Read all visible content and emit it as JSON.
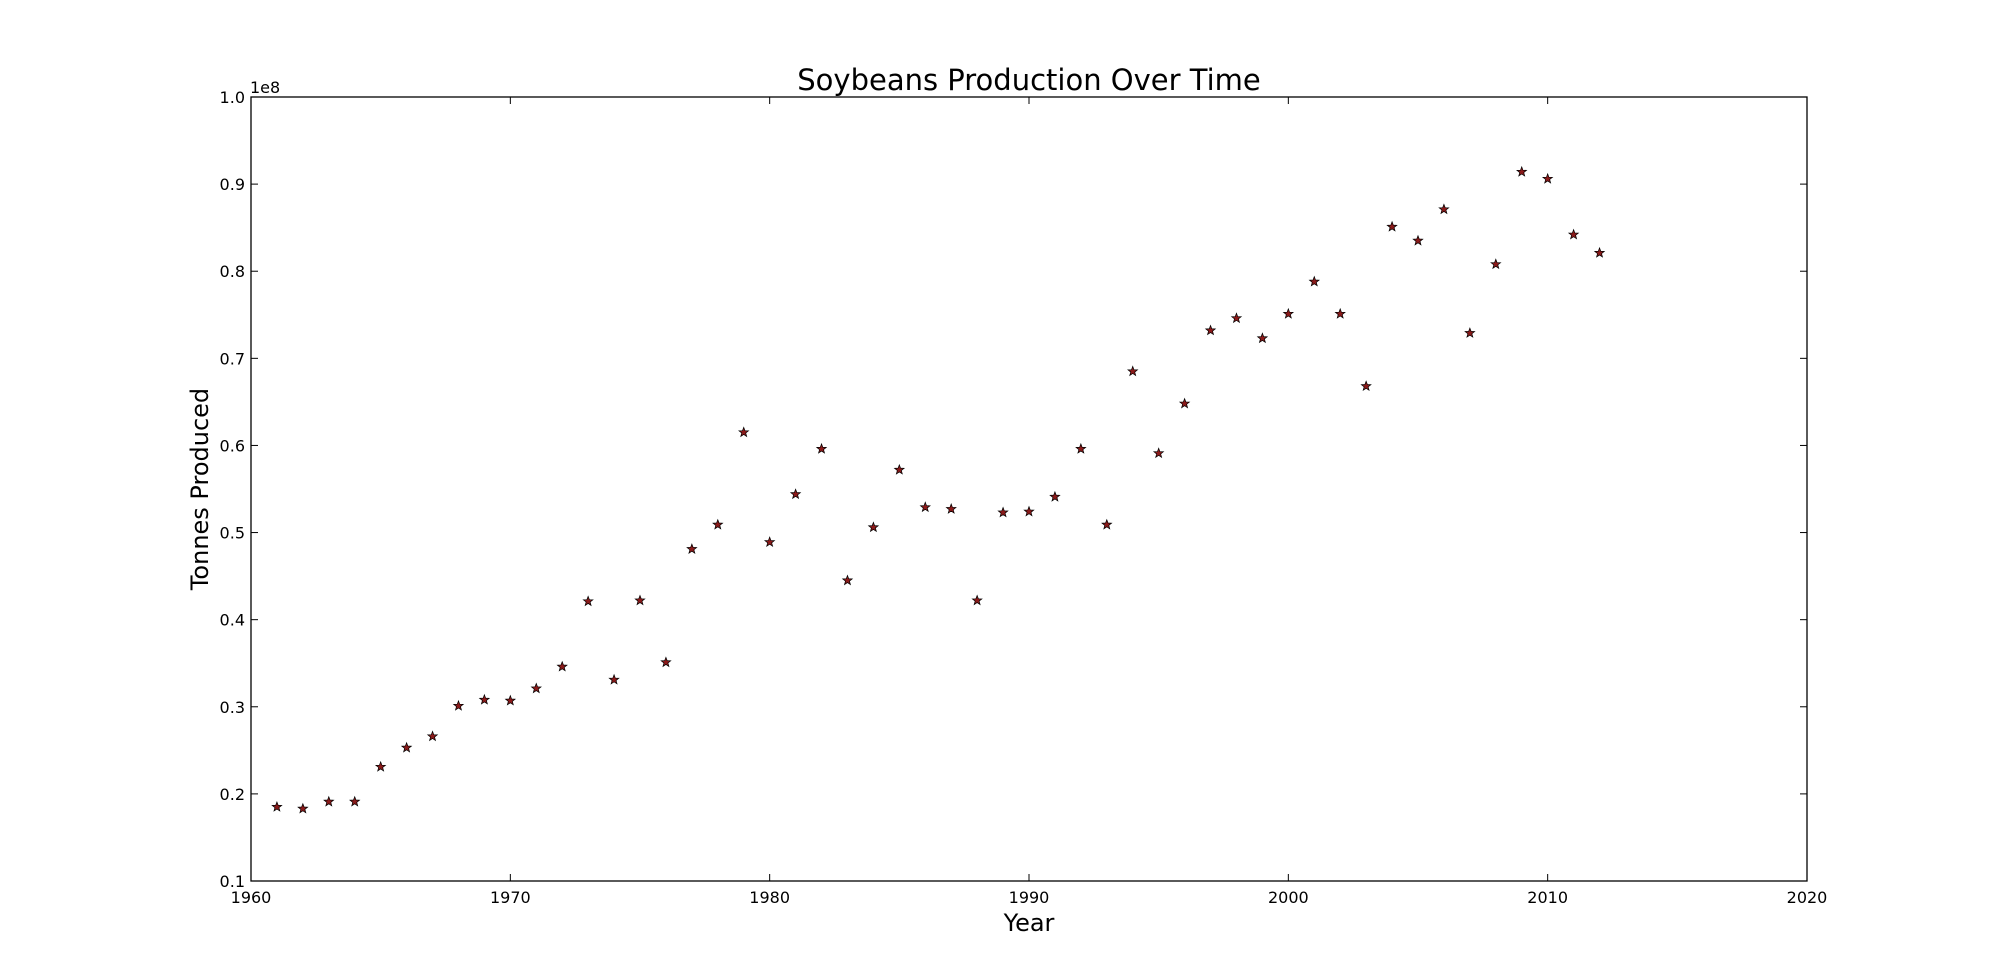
{
  "chart_data": {
    "type": "scatter",
    "title": "Soybeans Production Over Time",
    "xlabel": "Year",
    "ylabel": "Tonnes Produced",
    "y_offset_label": "1e8",
    "xlim": [
      1960,
      2020
    ],
    "ylim": [
      0.1,
      1.0
    ],
    "x_ticks": [
      1960,
      1970,
      1980,
      1990,
      2000,
      2010,
      2020
    ],
    "x_tick_labels": [
      "1960",
      "1970",
      "1980",
      "1990",
      "2000",
      "2010",
      "2020"
    ],
    "y_ticks": [
      0.1,
      0.2,
      0.3,
      0.4,
      0.5,
      0.6,
      0.7,
      0.8,
      0.9,
      1.0
    ],
    "y_tick_labels": [
      "0.1",
      "0.2",
      "0.3",
      "0.4",
      "0.5",
      "0.6",
      "0.7",
      "0.8",
      "0.9",
      "1.0"
    ],
    "grid": false,
    "marker": "star",
    "marker_color": "#8b1a1a",
    "series": [
      {
        "x": [
          1961,
          1962,
          1963,
          1964,
          1965,
          1966,
          1967,
          1968,
          1969,
          1970,
          1971,
          1972,
          1973,
          1974,
          1975,
          1976,
          1977,
          1978,
          1979,
          1980,
          1981,
          1982,
          1983,
          1984,
          1985,
          1986,
          1987,
          1988,
          1989,
          1990,
          1991,
          1992,
          1993,
          1994,
          1995,
          1996,
          1997,
          1998,
          1999,
          2000,
          2001,
          2002,
          2003,
          2004,
          2005,
          2006,
          2007,
          2008,
          2009,
          2010,
          2011,
          2012
        ],
        "y": [
          0.185,
          0.183,
          0.191,
          0.191,
          0.231,
          0.253,
          0.266,
          0.301,
          0.308,
          0.307,
          0.321,
          0.346,
          0.421,
          0.331,
          0.422,
          0.351,
          0.481,
          0.509,
          0.615,
          0.489,
          0.544,
          0.596,
          0.445,
          0.506,
          0.572,
          0.529,
          0.527,
          0.422,
          0.523,
          0.524,
          0.541,
          0.596,
          0.509,
          0.685,
          0.591,
          0.648,
          0.732,
          0.746,
          0.723,
          0.751,
          0.788,
          0.751,
          0.668,
          0.851,
          0.835,
          0.871,
          0.729,
          0.808,
          0.914,
          0.906,
          0.842,
          0.821
        ]
      }
    ]
  }
}
